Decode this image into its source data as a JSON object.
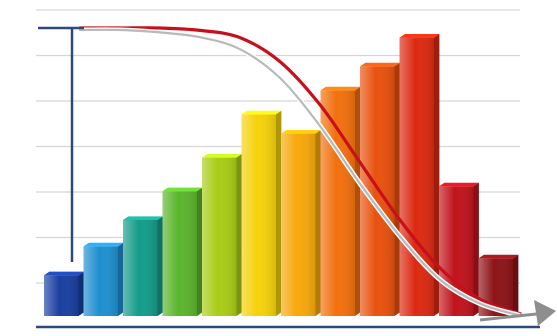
{
  "chart_data": {
    "type": "bar",
    "title": "",
    "xlabel": "",
    "ylabel": "",
    "grid": true,
    "ylim": [
      0,
      6
    ],
    "categories": [
      "",
      "",
      "",
      "",
      "",
      "",
      "",
      "",
      "",
      "",
      "",
      ""
    ],
    "values": [
      0.85,
      1.45,
      2.0,
      2.6,
      3.3,
      4.2,
      3.8,
      4.7,
      5.2,
      5.8,
      2.7,
      1.2
    ],
    "bar_colors": [
      "#1a3fa0",
      "#1f8fd0",
      "#159c8a",
      "#5bb52d",
      "#a9cc17",
      "#f5d20a",
      "#f7a90c",
      "#f2700e",
      "#e8520e",
      "#dc2a12",
      "#c0141c",
      "#8e1418"
    ],
    "curves": [
      {
        "color": "#c8101c",
        "values": [
          6.0,
          6.0,
          6.0,
          5.95,
          5.8,
          5.3,
          4.4,
          3.2,
          2.0,
          1.0,
          0.35,
          0.05
        ]
      },
      {
        "color": "#b9b9b9",
        "values": [
          6.0,
          6.0,
          5.95,
          5.85,
          5.6,
          5.0,
          4.0,
          2.8,
          1.7,
          0.8,
          0.3,
          0.05
        ]
      }
    ],
    "axis_color": "#2b4a7e",
    "grid_color": "#d6d6d6"
  }
}
